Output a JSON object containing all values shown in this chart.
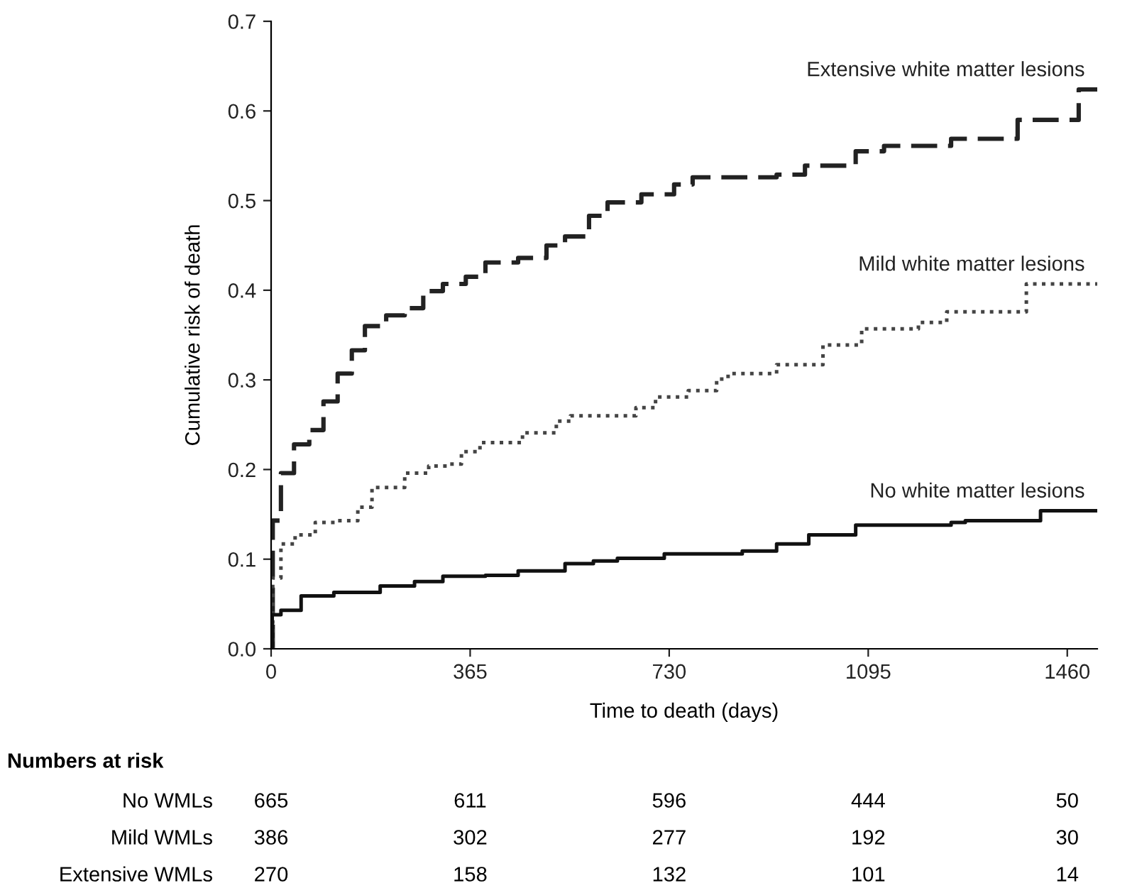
{
  "chart_data": {
    "type": "step",
    "xlabel": "Time to death (days)",
    "ylabel": "Cumulative risk of death",
    "xlim": [
      0,
      1515
    ],
    "xticks": [
      0,
      365,
      730,
      1095,
      1460
    ],
    "ylim": [
      0,
      0.7
    ],
    "yticks": [
      {
        "value": 0,
        "label": "0.0"
      },
      0.1,
      0.2,
      0.3,
      0.4,
      0.5,
      0.6,
      0.7
    ],
    "grid": false,
    "legend": false,
    "series": [
      {
        "name": "Extensive white matter lesions",
        "color": "#222222",
        "line_style": "dashed",
        "x": [
          0,
          3,
          18,
          42,
          70,
          96,
          122,
          148,
          172,
          211,
          245,
          279,
          315,
          357,
          393,
          453,
          505,
          539,
          583,
          617,
          679,
          739,
          773,
          927,
          979,
          1072,
          1124,
          1247,
          1369,
          1481,
          1515
        ],
        "values": [
          0,
          0.143,
          0.196,
          0.228,
          0.244,
          0.276,
          0.307,
          0.333,
          0.36,
          0.372,
          0.38,
          0.399,
          0.407,
          0.415,
          0.431,
          0.436,
          0.45,
          0.46,
          0.483,
          0.498,
          0.507,
          0.518,
          0.526,
          0.529,
          0.539,
          0.555,
          0.561,
          0.569,
          0.59,
          0.624,
          0.624
        ]
      },
      {
        "name": "Mild white matter lesions",
        "color": "#444444",
        "line_style": "dotted",
        "x": [
          0,
          3,
          18,
          44,
          81,
          122,
          159,
          185,
          245,
          289,
          323,
          349,
          383,
          461,
          523,
          549,
          669,
          705,
          765,
          817,
          838,
          927,
          1012,
          1083,
          1187,
          1239,
          1359,
          1385,
          1515
        ],
        "values": [
          0,
          0.079,
          0.117,
          0.127,
          0.141,
          0.143,
          0.158,
          0.18,
          0.196,
          0.204,
          0.206,
          0.22,
          0.23,
          0.241,
          0.254,
          0.26,
          0.269,
          0.281,
          0.288,
          0.301,
          0.307,
          0.317,
          0.339,
          0.357,
          0.364,
          0.376,
          0.376,
          0.407,
          0.407
        ]
      },
      {
        "name": "No white matter lesions",
        "color": "#111111",
        "line_style": "solid",
        "x": [
          0,
          2,
          18,
          55,
          115,
          200,
          263,
          315,
          393,
          453,
          539,
          591,
          635,
          721,
          752,
          864,
          927,
          986,
          1072,
          1247,
          1273,
          1403,
          1411,
          1515
        ],
        "values": [
          0,
          0.038,
          0.043,
          0.059,
          0.063,
          0.07,
          0.075,
          0.081,
          0.082,
          0.087,
          0.095,
          0.098,
          0.101,
          0.106,
          0.106,
          0.109,
          0.117,
          0.127,
          0.138,
          0.141,
          0.143,
          0.143,
          0.154,
          0.154
        ]
      }
    ],
    "annotations": [
      "Numbers at risk",
      "No WMLs",
      "665",
      "611",
      "596",
      "444",
      "50",
      "Mild WMLs",
      "386",
      "302",
      "277",
      "192",
      "30",
      "Extensive WMLs",
      "270",
      "158",
      "132",
      "101",
      "14"
    ]
  }
}
